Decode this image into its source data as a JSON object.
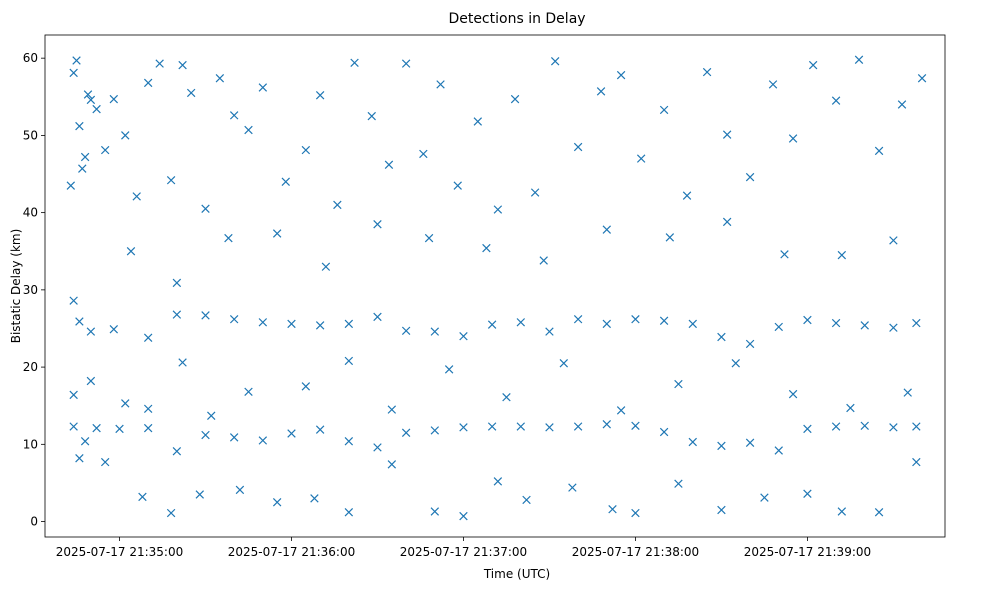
{
  "chart_data": {
    "type": "scatter",
    "title": "Detections in Delay",
    "xlabel": "Time (UTC)",
    "ylabel": "Bistatic Delay (km)",
    "marker": "x",
    "color": "#1f77b4",
    "grid": false,
    "legend": "none",
    "xlim": [
      "2025-07-17 21:34:34",
      "2025-07-17 21:39:48"
    ],
    "ylim": [
      -2,
      63
    ],
    "x_ticks": [
      "2025-07-17 21:35:00",
      "2025-07-17 21:36:00",
      "2025-07-17 21:37:00",
      "2025-07-17 21:38:00",
      "2025-07-17 21:39:00"
    ],
    "y_ticks": [
      0,
      10,
      20,
      30,
      40,
      50,
      60
    ],
    "time_range": [
      "2025-07-17 21:34:43",
      "2025-07-17 21:39:40"
    ],
    "series": [
      {
        "points": [
          [
            "2025-07-17 21:34:43",
            43.5
          ],
          [
            "2025-07-17 21:34:44",
            58.1
          ],
          [
            "2025-07-17 21:34:45",
            59.7
          ],
          [
            "2025-07-17 21:34:46",
            51.2
          ],
          [
            "2025-07-17 21:34:47",
            45.7
          ],
          [
            "2025-07-17 21:34:48",
            47.2
          ],
          [
            "2025-07-17 21:34:49",
            55.3
          ],
          [
            "2025-07-17 21:34:50",
            54.6
          ],
          [
            "2025-07-17 21:34:52",
            53.4
          ],
          [
            "2025-07-17 21:34:55",
            48.1
          ],
          [
            "2025-07-17 21:34:58",
            54.7
          ],
          [
            "2025-07-17 21:35:02",
            50.0
          ],
          [
            "2025-07-17 21:35:06",
            42.1
          ],
          [
            "2025-07-17 21:35:10",
            56.8
          ],
          [
            "2025-07-17 21:35:14",
            59.3
          ],
          [
            "2025-07-17 21:35:18",
            44.2
          ],
          [
            "2025-07-17 21:35:22",
            59.1
          ],
          [
            "2025-07-17 21:35:25",
            55.5
          ],
          [
            "2025-07-17 21:35:30",
            40.5
          ],
          [
            "2025-07-17 21:35:35",
            57.4
          ],
          [
            "2025-07-17 21:35:40",
            52.6
          ],
          [
            "2025-07-17 21:35:45",
            50.7
          ],
          [
            "2025-07-17 21:35:50",
            56.2
          ],
          [
            "2025-07-17 21:35:58",
            44.0
          ],
          [
            "2025-07-17 21:36:05",
            48.1
          ],
          [
            "2025-07-17 21:36:10",
            55.2
          ],
          [
            "2025-07-17 21:36:16",
            41.0
          ],
          [
            "2025-07-17 21:36:22",
            59.4
          ],
          [
            "2025-07-17 21:36:28",
            52.5
          ],
          [
            "2025-07-17 21:36:34",
            46.2
          ],
          [
            "2025-07-17 21:36:40",
            59.3
          ],
          [
            "2025-07-17 21:36:46",
            47.6
          ],
          [
            "2025-07-17 21:36:52",
            56.6
          ],
          [
            "2025-07-17 21:36:58",
            43.5
          ],
          [
            "2025-07-17 21:37:05",
            51.8
          ],
          [
            "2025-07-17 21:37:12",
            40.4
          ],
          [
            "2025-07-17 21:37:18",
            54.7
          ],
          [
            "2025-07-17 21:37:25",
            42.6
          ],
          [
            "2025-07-17 21:37:32",
            59.6
          ],
          [
            "2025-07-17 21:37:40",
            48.5
          ],
          [
            "2025-07-17 21:37:48",
            55.7
          ],
          [
            "2025-07-17 21:37:55",
            57.8
          ],
          [
            "2025-07-17 21:38:02",
            47.0
          ],
          [
            "2025-07-17 21:38:10",
            53.3
          ],
          [
            "2025-07-17 21:38:18",
            42.2
          ],
          [
            "2025-07-17 21:38:25",
            58.2
          ],
          [
            "2025-07-17 21:38:32",
            50.1
          ],
          [
            "2025-07-17 21:38:40",
            44.6
          ],
          [
            "2025-07-17 21:38:48",
            56.6
          ],
          [
            "2025-07-17 21:38:55",
            49.6
          ],
          [
            "2025-07-17 21:39:02",
            59.1
          ],
          [
            "2025-07-17 21:39:10",
            54.5
          ],
          [
            "2025-07-17 21:39:18",
            59.8
          ],
          [
            "2025-07-17 21:39:25",
            48.0
          ],
          [
            "2025-07-17 21:39:33",
            54.0
          ],
          [
            "2025-07-17 21:39:40",
            57.4
          ],
          [
            "2025-07-17 21:35:04",
            35.0
          ],
          [
            "2025-07-17 21:35:20",
            30.9
          ],
          [
            "2025-07-17 21:35:38",
            36.7
          ],
          [
            "2025-07-17 21:35:55",
            37.3
          ],
          [
            "2025-07-17 21:36:12",
            33.0
          ],
          [
            "2025-07-17 21:36:30",
            38.5
          ],
          [
            "2025-07-17 21:36:48",
            36.7
          ],
          [
            "2025-07-17 21:37:08",
            35.4
          ],
          [
            "2025-07-17 21:37:28",
            33.8
          ],
          [
            "2025-07-17 21:37:50",
            37.8
          ],
          [
            "2025-07-17 21:38:12",
            36.8
          ],
          [
            "2025-07-17 21:38:32",
            38.8
          ],
          [
            "2025-07-17 21:38:52",
            34.6
          ],
          [
            "2025-07-17 21:39:12",
            34.5
          ],
          [
            "2025-07-17 21:39:30",
            36.4
          ],
          [
            "2025-07-17 21:34:44",
            28.6
          ],
          [
            "2025-07-17 21:34:46",
            25.9
          ],
          [
            "2025-07-17 21:34:50",
            24.6
          ],
          [
            "2025-07-17 21:34:58",
            24.9
          ],
          [
            "2025-07-17 21:35:10",
            23.8
          ],
          [
            "2025-07-17 21:35:20",
            26.8
          ],
          [
            "2025-07-17 21:35:30",
            26.7
          ],
          [
            "2025-07-17 21:35:40",
            26.2
          ],
          [
            "2025-07-17 21:35:50",
            25.8
          ],
          [
            "2025-07-17 21:36:00",
            25.6
          ],
          [
            "2025-07-17 21:36:10",
            25.4
          ],
          [
            "2025-07-17 21:36:20",
            25.6
          ],
          [
            "2025-07-17 21:36:30",
            26.5
          ],
          [
            "2025-07-17 21:36:40",
            24.7
          ],
          [
            "2025-07-17 21:36:50",
            24.6
          ],
          [
            "2025-07-17 21:37:00",
            24.0
          ],
          [
            "2025-07-17 21:37:10",
            25.5
          ],
          [
            "2025-07-17 21:37:20",
            25.8
          ],
          [
            "2025-07-17 21:37:30",
            24.6
          ],
          [
            "2025-07-17 21:37:40",
            26.2
          ],
          [
            "2025-07-17 21:37:50",
            25.6
          ],
          [
            "2025-07-17 21:38:00",
            26.2
          ],
          [
            "2025-07-17 21:38:10",
            26.0
          ],
          [
            "2025-07-17 21:38:20",
            25.6
          ],
          [
            "2025-07-17 21:38:30",
            23.9
          ],
          [
            "2025-07-17 21:38:40",
            23.0
          ],
          [
            "2025-07-17 21:38:50",
            25.2
          ],
          [
            "2025-07-17 21:39:00",
            26.1
          ],
          [
            "2025-07-17 21:39:10",
            25.7
          ],
          [
            "2025-07-17 21:39:20",
            25.4
          ],
          [
            "2025-07-17 21:39:30",
            25.1
          ],
          [
            "2025-07-17 21:39:38",
            25.7
          ],
          [
            "2025-07-17 21:34:44",
            16.4
          ],
          [
            "2025-07-17 21:34:50",
            18.2
          ],
          [
            "2025-07-17 21:35:02",
            15.3
          ],
          [
            "2025-07-17 21:35:10",
            14.6
          ],
          [
            "2025-07-17 21:35:22",
            20.6
          ],
          [
            "2025-07-17 21:35:32",
            13.7
          ],
          [
            "2025-07-17 21:35:45",
            16.8
          ],
          [
            "2025-07-17 21:36:05",
            17.5
          ],
          [
            "2025-07-17 21:36:20",
            20.8
          ],
          [
            "2025-07-17 21:36:35",
            14.5
          ],
          [
            "2025-07-17 21:36:55",
            19.7
          ],
          [
            "2025-07-17 21:37:15",
            16.1
          ],
          [
            "2025-07-17 21:37:35",
            20.5
          ],
          [
            "2025-07-17 21:37:55",
            14.4
          ],
          [
            "2025-07-17 21:38:15",
            17.8
          ],
          [
            "2025-07-17 21:38:35",
            20.5
          ],
          [
            "2025-07-17 21:38:55",
            16.5
          ],
          [
            "2025-07-17 21:39:15",
            14.7
          ],
          [
            "2025-07-17 21:39:35",
            16.7
          ],
          [
            "2025-07-17 21:34:44",
            12.3
          ],
          [
            "2025-07-17 21:34:48",
            10.4
          ],
          [
            "2025-07-17 21:34:52",
            12.1
          ],
          [
            "2025-07-17 21:35:00",
            12.0
          ],
          [
            "2025-07-17 21:35:10",
            12.1
          ],
          [
            "2025-07-17 21:35:20",
            9.1
          ],
          [
            "2025-07-17 21:35:30",
            11.2
          ],
          [
            "2025-07-17 21:35:40",
            10.9
          ],
          [
            "2025-07-17 21:35:50",
            10.5
          ],
          [
            "2025-07-17 21:36:00",
            11.4
          ],
          [
            "2025-07-17 21:36:10",
            11.9
          ],
          [
            "2025-07-17 21:36:20",
            10.4
          ],
          [
            "2025-07-17 21:36:30",
            9.6
          ],
          [
            "2025-07-17 21:36:40",
            11.5
          ],
          [
            "2025-07-17 21:36:50",
            11.8
          ],
          [
            "2025-07-17 21:37:00",
            12.2
          ],
          [
            "2025-07-17 21:37:10",
            12.3
          ],
          [
            "2025-07-17 21:37:20",
            12.3
          ],
          [
            "2025-07-17 21:37:30",
            12.2
          ],
          [
            "2025-07-17 21:37:40",
            12.3
          ],
          [
            "2025-07-17 21:37:50",
            12.6
          ],
          [
            "2025-07-17 21:38:00",
            12.4
          ],
          [
            "2025-07-17 21:38:10",
            11.6
          ],
          [
            "2025-07-17 21:38:20",
            10.3
          ],
          [
            "2025-07-17 21:38:30",
            9.8
          ],
          [
            "2025-07-17 21:38:40",
            10.2
          ],
          [
            "2025-07-17 21:38:50",
            9.2
          ],
          [
            "2025-07-17 21:39:00",
            12.0
          ],
          [
            "2025-07-17 21:39:10",
            12.3
          ],
          [
            "2025-07-17 21:39:20",
            12.4
          ],
          [
            "2025-07-17 21:39:30",
            12.2
          ],
          [
            "2025-07-17 21:39:38",
            12.3
          ],
          [
            "2025-07-17 21:34:46",
            8.2
          ],
          [
            "2025-07-17 21:34:55",
            7.7
          ],
          [
            "2025-07-17 21:35:08",
            3.2
          ],
          [
            "2025-07-17 21:35:18",
            1.1
          ],
          [
            "2025-07-17 21:35:28",
            3.5
          ],
          [
            "2025-07-17 21:35:42",
            4.1
          ],
          [
            "2025-07-17 21:35:55",
            2.5
          ],
          [
            "2025-07-17 21:36:08",
            3.0
          ],
          [
            "2025-07-17 21:36:20",
            1.2
          ],
          [
            "2025-07-17 21:36:35",
            7.4
          ],
          [
            "2025-07-17 21:36:50",
            1.3
          ],
          [
            "2025-07-17 21:37:00",
            0.7
          ],
          [
            "2025-07-17 21:37:12",
            5.2
          ],
          [
            "2025-07-17 21:37:22",
            2.8
          ],
          [
            "2025-07-17 21:37:38",
            4.4
          ],
          [
            "2025-07-17 21:37:52",
            1.6
          ],
          [
            "2025-07-17 21:38:00",
            1.1
          ],
          [
            "2025-07-17 21:38:15",
            4.9
          ],
          [
            "2025-07-17 21:38:30",
            1.5
          ],
          [
            "2025-07-17 21:38:45",
            3.1
          ],
          [
            "2025-07-17 21:39:00",
            3.6
          ],
          [
            "2025-07-17 21:39:12",
            1.3
          ],
          [
            "2025-07-17 21:39:25",
            1.2
          ],
          [
            "2025-07-17 21:39:38",
            7.7
          ]
        ]
      }
    ]
  }
}
